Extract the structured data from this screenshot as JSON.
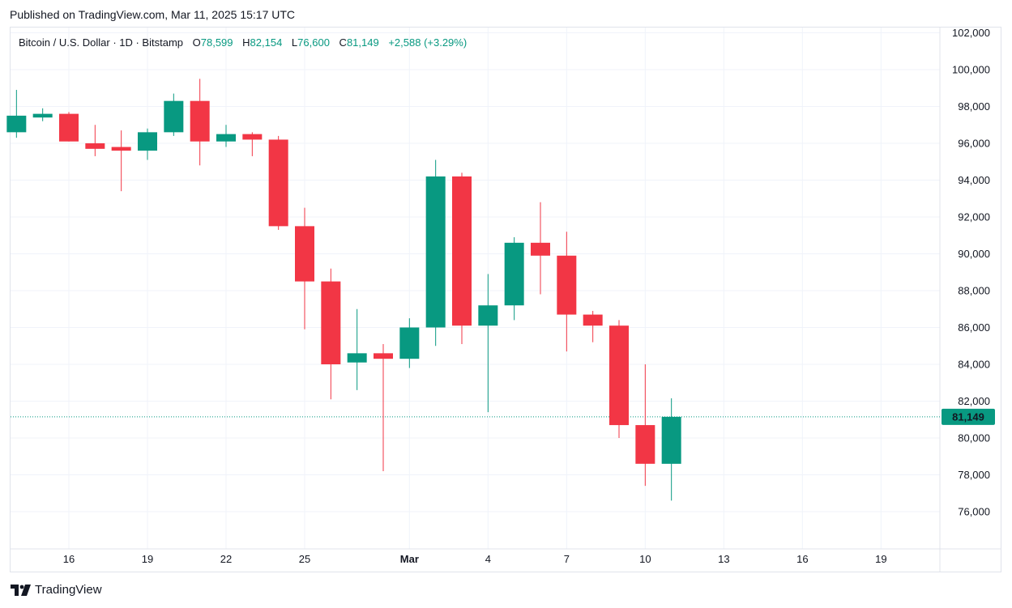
{
  "header": {
    "published_text": "Published on TradingView.com, Mar 11, 2025 15:17 UTC"
  },
  "legend": {
    "symbol": "Bitcoin / U.S. Dollar · 1D · Bitstamp",
    "open_label": "O",
    "open_value": "78,599",
    "high_label": "H",
    "high_value": "82,154",
    "low_label": "L",
    "low_value": "76,600",
    "close_label": "C",
    "close_value": "81,149",
    "change": "+2,588 (+3.29%)"
  },
  "footer": {
    "brand": "TradingView"
  },
  "colors": {
    "up": "#089981",
    "down": "#f23645",
    "grid": "#f0f3fa",
    "text": "#131722"
  },
  "chart_data": {
    "type": "candlestick",
    "title": "Bitcoin / U.S. Dollar · 1D · Bitstamp",
    "ylim": [
      74000,
      103000
    ],
    "y_ticks": [
      76000,
      78000,
      80000,
      82000,
      84000,
      86000,
      88000,
      90000,
      92000,
      94000,
      96000,
      98000,
      100000,
      102000
    ],
    "y_tick_labels": [
      "76,000",
      "78,000",
      "80,000",
      "82,000",
      "84,000",
      "86,000",
      "88,000",
      "90,000",
      "92,000",
      "94,000",
      "96,000",
      "98,000",
      "100,000",
      "102,000"
    ],
    "x_range_days": [
      13.8,
      52.2
    ],
    "x_ticks": [
      {
        "day": 16,
        "label": "16"
      },
      {
        "day": 19,
        "label": "19"
      },
      {
        "day": 22,
        "label": "22"
      },
      {
        "day": 25,
        "label": "25"
      },
      {
        "day": 29,
        "label": "Mar"
      },
      {
        "day": 32,
        "label": "4"
      },
      {
        "day": 35,
        "label": "7"
      },
      {
        "day": 38,
        "label": "10"
      },
      {
        "day": 41,
        "label": "13"
      },
      {
        "day": 44,
        "label": "16"
      },
      {
        "day": 47,
        "label": "19"
      }
    ],
    "last_price": 81149,
    "last_price_label": "81,149",
    "candles": [
      {
        "day": 14,
        "date": "Feb 14",
        "open": 96600,
        "high": 98900,
        "low": 96300,
        "close": 97500
      },
      {
        "day": 15,
        "date": "Feb 15",
        "open": 97400,
        "high": 97900,
        "low": 97200,
        "close": 97600
      },
      {
        "day": 16,
        "date": "Feb 16",
        "open": 97600,
        "high": 97700,
        "low": 96100,
        "close": 96100
      },
      {
        "day": 17,
        "date": "Feb 17",
        "open": 96000,
        "high": 97000,
        "low": 95300,
        "close": 95700
      },
      {
        "day": 18,
        "date": "Feb 18",
        "open": 95800,
        "high": 96700,
        "low": 93400,
        "close": 95600
      },
      {
        "day": 19,
        "date": "Feb 19",
        "open": 95600,
        "high": 96800,
        "low": 95100,
        "close": 96600
      },
      {
        "day": 20,
        "date": "Feb 20",
        "open": 96600,
        "high": 98700,
        "low": 96400,
        "close": 98300
      },
      {
        "day": 21,
        "date": "Feb 21",
        "open": 98300,
        "high": 99500,
        "low": 94800,
        "close": 96100
      },
      {
        "day": 22,
        "date": "Feb 22",
        "open": 96100,
        "high": 97000,
        "low": 95800,
        "close": 96500
      },
      {
        "day": 23,
        "date": "Feb 23",
        "open": 96500,
        "high": 96600,
        "low": 95300,
        "close": 96200
      },
      {
        "day": 24,
        "date": "Feb 24",
        "open": 96200,
        "high": 96400,
        "low": 91300,
        "close": 91500
      },
      {
        "day": 25,
        "date": "Feb 25",
        "open": 91500,
        "high": 92500,
        "low": 85900,
        "close": 88500
      },
      {
        "day": 26,
        "date": "Feb 26",
        "open": 88500,
        "high": 89200,
        "low": 82100,
        "close": 84000
      },
      {
        "day": 27,
        "date": "Feb 27",
        "open": 84100,
        "high": 87000,
        "low": 82600,
        "close": 84600
      },
      {
        "day": 28,
        "date": "Feb 28",
        "open": 84600,
        "high": 85100,
        "low": 78200,
        "close": 84300
      },
      {
        "day": 29,
        "date": "Mar 1",
        "open": 84300,
        "high": 86500,
        "low": 83800,
        "close": 86000
      },
      {
        "day": 30,
        "date": "Mar 2",
        "open": 86000,
        "high": 95100,
        "low": 85000,
        "close": 94200
      },
      {
        "day": 31,
        "date": "Mar 3",
        "open": 94200,
        "high": 94400,
        "low": 85100,
        "close": 86100
      },
      {
        "day": 32,
        "date": "Mar 4",
        "open": 86100,
        "high": 88900,
        "low": 81400,
        "close": 87200
      },
      {
        "day": 33,
        "date": "Mar 5",
        "open": 87200,
        "high": 90900,
        "low": 86400,
        "close": 90600
      },
      {
        "day": 34,
        "date": "Mar 6",
        "open": 90600,
        "high": 92800,
        "low": 87800,
        "close": 89900
      },
      {
        "day": 35,
        "date": "Mar 7",
        "open": 89900,
        "high": 91200,
        "low": 84700,
        "close": 86700
      },
      {
        "day": 36,
        "date": "Mar 8",
        "open": 86700,
        "high": 86900,
        "low": 85200,
        "close": 86100
      },
      {
        "day": 37,
        "date": "Mar 9",
        "open": 86100,
        "high": 86400,
        "low": 80000,
        "close": 80700
      },
      {
        "day": 38,
        "date": "Mar 10",
        "open": 80700,
        "high": 84000,
        "low": 77400,
        "close": 78600
      },
      {
        "day": 39,
        "date": "Mar 11",
        "open": 78599,
        "high": 82154,
        "low": 76600,
        "close": 81149
      }
    ]
  }
}
